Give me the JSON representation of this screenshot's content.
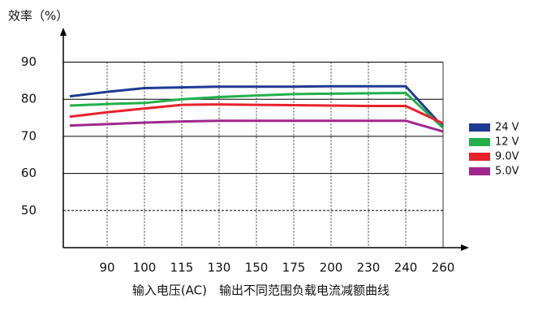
{
  "chart_data": {
    "type": "line",
    "title": "效率（%）",
    "xlabel": "输入电压(AC)",
    "caption": "输出不同范围负载电流减额曲线",
    "categories": [
      null,
      "90",
      "100",
      "115",
      "130",
      "150",
      "175",
      "200",
      "230",
      "240",
      "260"
    ],
    "series": [
      {
        "name": "24 V",
        "color": "#1f3a93",
        "values": [
          80.8,
          82,
          83,
          83.2,
          83.4,
          83.4,
          83.4,
          83.5,
          83.5,
          83.5,
          72.5
        ]
      },
      {
        "name": "12 V",
        "color": "#22b04b",
        "values": [
          78.3,
          78.7,
          79,
          80,
          80.6,
          81,
          81.4,
          81.5,
          81.6,
          81.7,
          72.3
        ]
      },
      {
        "name": "9.0V",
        "color": "#e8212b",
        "values": [
          75.3,
          76.5,
          77.5,
          78.5,
          78.6,
          78.5,
          78.4,
          78.3,
          78.2,
          78.2,
          73.5
        ]
      },
      {
        "name": "5.0V",
        "color": "#a0288c",
        "values": [
          72.9,
          73.3,
          73.7,
          74,
          74.2,
          74.2,
          74.2,
          74.2,
          74.2,
          74.2,
          71.3
        ]
      }
    ],
    "ylim": [
      40,
      98
    ],
    "yticks": [
      50,
      60,
      70,
      80,
      90
    ],
    "grid": true,
    "legend": "right"
  }
}
